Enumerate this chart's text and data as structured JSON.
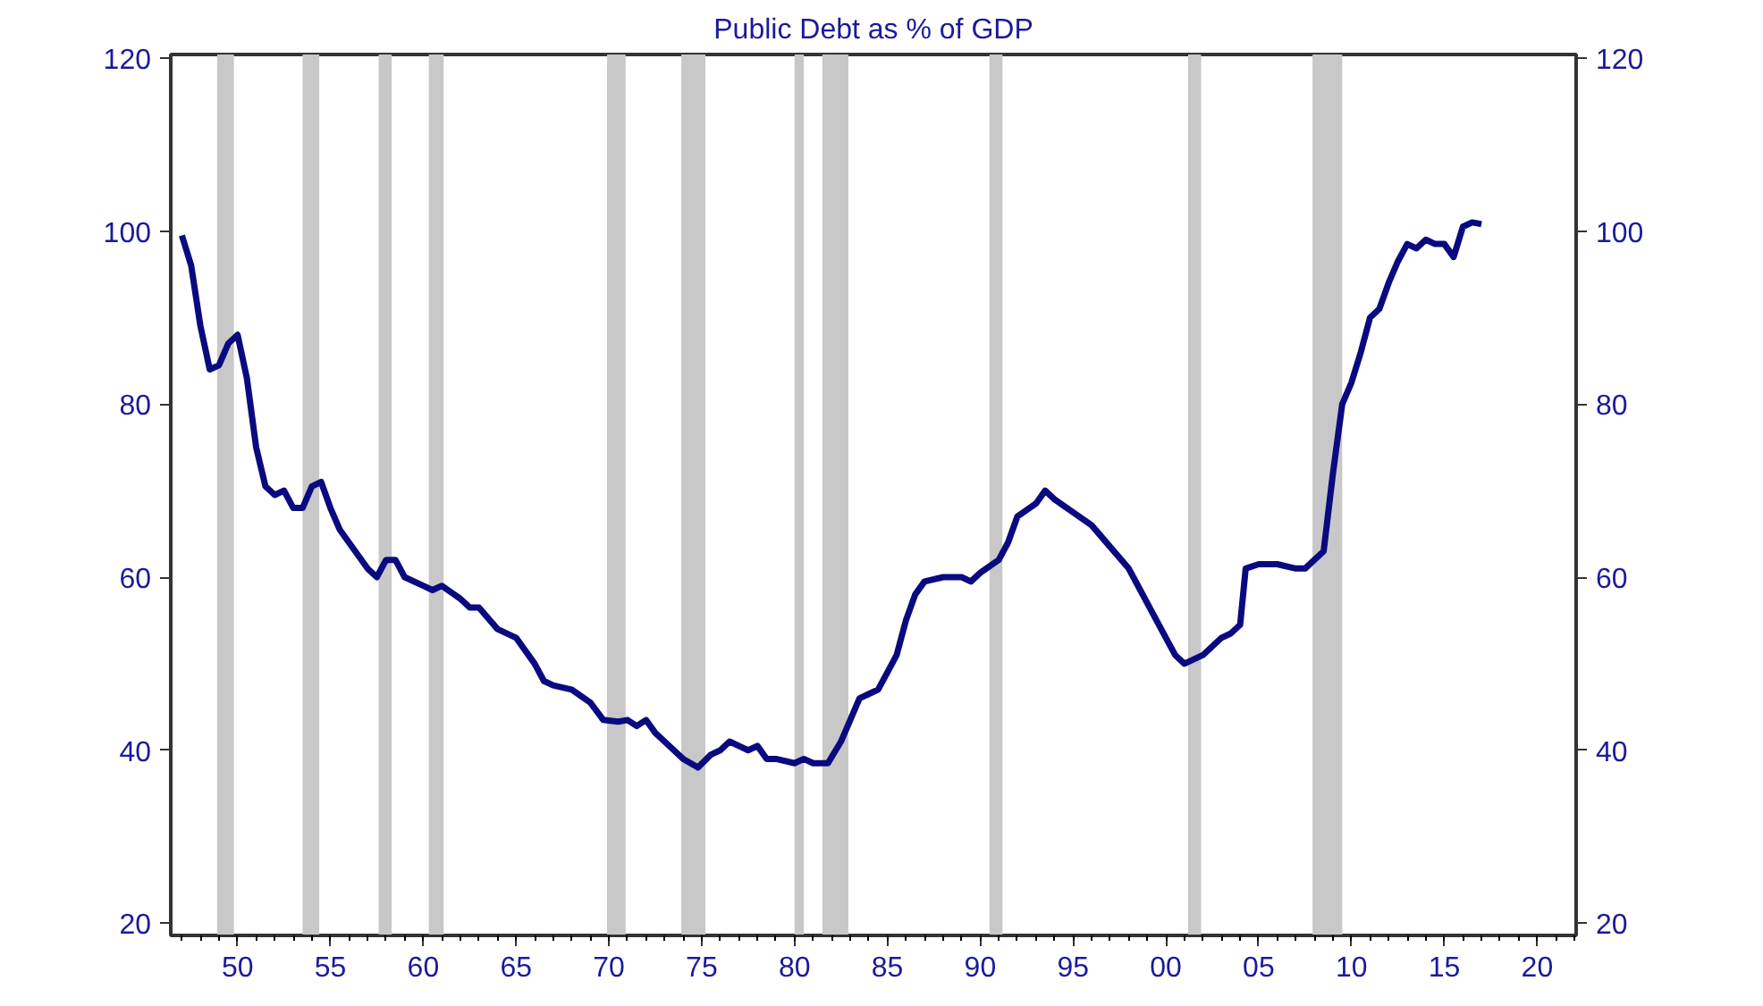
{
  "chart_data": {
    "type": "line",
    "title": "Public Debt as % of GDP",
    "x": [
      1947.0,
      1947.5,
      1948,
      1948.5,
      1949,
      1949.5,
      1950,
      1950.5,
      1951,
      1951.5,
      1952,
      1952.5,
      1953,
      1953.5,
      1954,
      1954.5,
      1955,
      1955.5,
      1956,
      1957,
      1957.5,
      1958,
      1958.5,
      1959,
      1960,
      1960.5,
      1961,
      1962,
      1962.5,
      1963,
      1964,
      1965,
      1966,
      1966.5,
      1967,
      1968,
      1969,
      1969.7,
      1970.5,
      1971,
      1971.5,
      1972,
      1972.5,
      1973,
      1974,
      1974.8,
      1975.5,
      1976,
      1976.5,
      1977,
      1977.5,
      1978,
      1978.5,
      1979,
      1980,
      1980.5,
      1981,
      1981.8,
      1982.5,
      1983,
      1983.5,
      1984,
      1984.5,
      1985,
      1985.5,
      1986,
      1986.5,
      1987,
      1988,
      1989,
      1989.5,
      1990,
      1991,
      1991.5,
      1992,
      1993,
      1993.5,
      1994,
      1995,
      1996,
      1997,
      1998,
      1999,
      2000,
      2000.5,
      2001,
      2002,
      2003,
      2003.5,
      2004,
      2004.3,
      2005,
      2006,
      2007,
      2007.5,
      2008,
      2008.5,
      2009,
      2009.5,
      2010,
      2010.5,
      2011,
      2011.5,
      2012,
      2012.5,
      2013,
      2013.5,
      2014,
      2014.5,
      2015,
      2015.5,
      2016,
      2016.5,
      2017
    ],
    "series": [
      {
        "color": "#0a0a80",
        "values": [
          99.5,
          96,
          89,
          84,
          84.5,
          87,
          88,
          83,
          75,
          70.5,
          69.5,
          70,
          68,
          68,
          70.5,
          71,
          68,
          65.5,
          64,
          61,
          60,
          62,
          62,
          60,
          59,
          58.5,
          59,
          57.5,
          56.5,
          56.5,
          54,
          53,
          50,
          48,
          47.5,
          47,
          45.5,
          43.5,
          43.3,
          43.5,
          42.8,
          43.5,
          42,
          41,
          39,
          38,
          39.5,
          40,
          41,
          40.5,
          40,
          40.5,
          39,
          39,
          38.5,
          39,
          38.5,
          38.5,
          41,
          43.5,
          46,
          46.5,
          47,
          49,
          51,
          55,
          58,
          59.5,
          60,
          60,
          59.5,
          60.5,
          62,
          64,
          67,
          68.5,
          70,
          69,
          67.5,
          66,
          63.5,
          61,
          57,
          53,
          51,
          50,
          51,
          53,
          53.5,
          54.5,
          61,
          61.5,
          61.5,
          61,
          61,
          62,
          63,
          72,
          80,
          82.5,
          86,
          90,
          91,
          94,
          96.5,
          98.5,
          98,
          99,
          98.5,
          98.5,
          97,
          100.5,
          101,
          100.8
        ]
      }
    ],
    "xlim": [
      1946.4,
      2022.1
    ],
    "xticks": [
      {
        "value": 1950,
        "label": "50"
      },
      {
        "value": 1955,
        "label": "55"
      },
      {
        "value": 1960,
        "label": "60"
      },
      {
        "value": 1965,
        "label": "65"
      },
      {
        "value": 1970,
        "label": "70"
      },
      {
        "value": 1975,
        "label": "75"
      },
      {
        "value": 1980,
        "label": "80"
      },
      {
        "value": 1985,
        "label": "85"
      },
      {
        "value": 1990,
        "label": "90"
      },
      {
        "value": 1995,
        "label": "95"
      },
      {
        "value": 2000,
        "label": "00"
      },
      {
        "value": 2005,
        "label": "05"
      },
      {
        "value": 2010,
        "label": "10"
      },
      {
        "value": 2015,
        "label": "15"
      },
      {
        "value": 2020,
        "label": "20"
      }
    ],
    "ylim": [
      18.6,
      120.4
    ],
    "yticks": [
      20,
      40,
      60,
      80,
      100,
      120
    ],
    "y2lim": [
      18.6,
      120.4
    ],
    "y2ticks": [
      20,
      40,
      60,
      80,
      100,
      120
    ],
    "bands": [
      {
        "axis": "x",
        "from": 1948.9,
        "to": 1949.8,
        "color": "#c8c8c8"
      },
      {
        "axis": "x",
        "from": 1953.5,
        "to": 1954.4,
        "color": "#c8c8c8"
      },
      {
        "axis": "x",
        "from": 1957.6,
        "to": 1958.3,
        "color": "#c8c8c8"
      },
      {
        "axis": "x",
        "from": 1960.3,
        "to": 1961.1,
        "color": "#c8c8c8"
      },
      {
        "axis": "x",
        "from": 1969.9,
        "to": 1970.9,
        "color": "#c8c8c8"
      },
      {
        "axis": "x",
        "from": 1973.9,
        "to": 1975.2,
        "color": "#c8c8c8"
      },
      {
        "axis": "x",
        "from": 1980.0,
        "to": 1980.5,
        "color": "#c8c8c8"
      },
      {
        "axis": "x",
        "from": 1981.5,
        "to": 1982.9,
        "color": "#c8c8c8"
      },
      {
        "axis": "x",
        "from": 1990.5,
        "to": 1991.2,
        "color": "#c8c8c8"
      },
      {
        "axis": "x",
        "from": 2001.2,
        "to": 2001.9,
        "color": "#c8c8c8"
      },
      {
        "axis": "x",
        "from": 2007.9,
        "to": 2009.5,
        "color": "#c8c8c8"
      }
    ],
    "grid": false,
    "marker": "none",
    "line_style": "solid"
  }
}
